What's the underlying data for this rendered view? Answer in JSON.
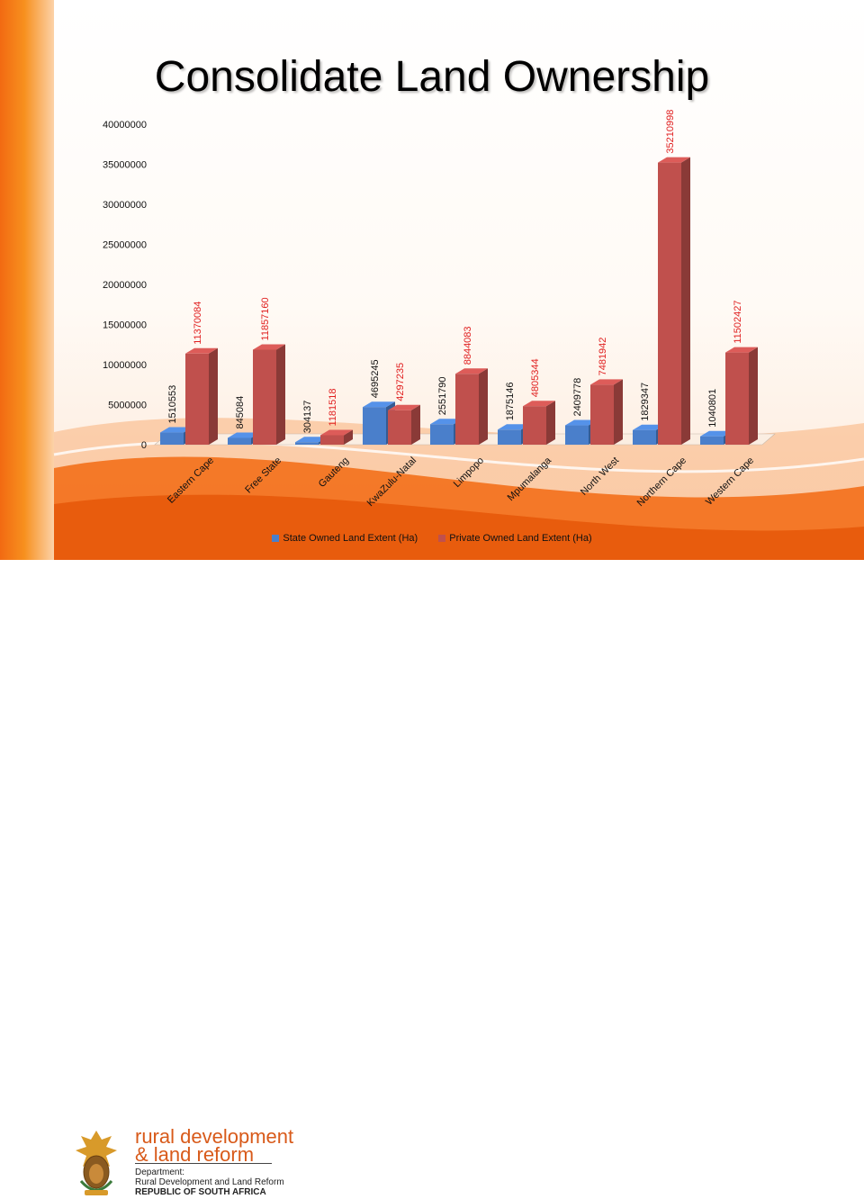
{
  "slide": {
    "title": "Consolidate Land Ownership"
  },
  "colors": {
    "state": "#4a7fcb",
    "private": "#c0504d",
    "state_label": "#111111",
    "private_label": "#e02020",
    "accent_orange": "#f26a12"
  },
  "chart_data": {
    "type": "bar",
    "categories": [
      "Eastern Cape",
      "Free State",
      "Gauteng",
      "KwaZulu-Natal",
      "Limpopo",
      "Mpumalanga",
      "North West",
      "Northern Cape",
      "Western Cape"
    ],
    "series": [
      {
        "name": "State Owned Land Extent (Ha)",
        "values": [
          1510553,
          845084,
          304137,
          4695245,
          2551790,
          1875146,
          2409778,
          1829347,
          1040801
        ]
      },
      {
        "name": "Private Owned Land Extent (Ha)",
        "values": [
          11370084,
          11857160,
          1181518,
          4297235,
          8844083,
          4805344,
          7481942,
          35210998,
          11502427
        ]
      }
    ],
    "y_ticks": [
      "0",
      "5000000",
      "10000000",
      "15000000",
      "20000000",
      "25000000",
      "30000000",
      "35000000",
      "40000000"
    ],
    "ylim": [
      0,
      40000000
    ],
    "legend_position": "bottom",
    "grid": false
  },
  "footer": {
    "brand_line1": "rural development",
    "brand_line2": "& land reform",
    "dept_label": "Department:",
    "dept_name": "Rural Development and Land Reform",
    "country": "REPUBLIC OF SOUTH AFRICA",
    "crest_icon": "coat-of-arms-icon"
  }
}
